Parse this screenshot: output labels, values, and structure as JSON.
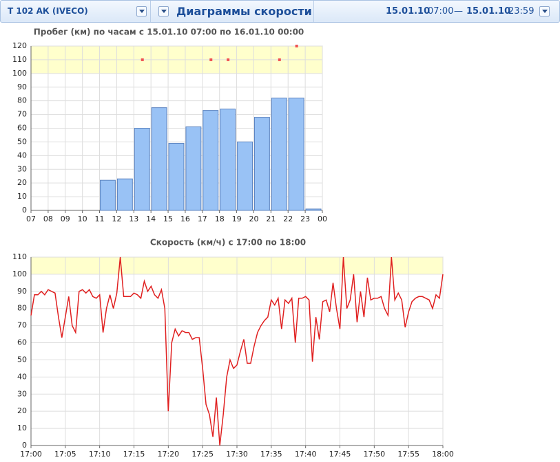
{
  "header": {
    "vehicle": "Т 102 АК (IVECO)",
    "title": "Диаграммы скорости",
    "from_date": "15.01.10",
    "from_time": "07:00",
    "dash": "—",
    "to_date": "15.01.10",
    "to_time": "23:59"
  },
  "chart_data": [
    {
      "type": "histogram",
      "title": "Пробег (км) по часам с 15.01.10 07:00 по 16.01.10 00:00",
      "color": "#99c2f5",
      "edge_color": "#5b83c0",
      "bins": [
        7,
        8,
        9,
        10,
        11,
        12,
        13,
        14,
        15,
        16,
        17,
        18,
        19,
        20,
        21,
        22,
        23,
        24
      ],
      "values": [
        0,
        0,
        0,
        0,
        22,
        23,
        60,
        75,
        49,
        61,
        73,
        74,
        50,
        68,
        82,
        82,
        1
      ],
      "xlim": [
        7,
        24
      ],
      "xticks": [
        {
          "value": 7,
          "label": "07"
        },
        {
          "value": 8,
          "label": "08"
        },
        {
          "value": 9,
          "label": "09"
        },
        {
          "value": 10,
          "label": "10"
        },
        11,
        12,
        13,
        14,
        15,
        16,
        17,
        18,
        19,
        20,
        21,
        22,
        23,
        {
          "value": 24,
          "label": "00"
        }
      ],
      "ylim": [
        0,
        120
      ],
      "yticks": [
        0,
        10,
        20,
        30,
        40,
        50,
        60,
        70,
        80,
        90,
        100,
        110,
        120
      ],
      "band": [
        100,
        120
      ],
      "band_color": "#ffffcc",
      "markers": {
        "color": "#f05050",
        "x": [
          13.5,
          17.5,
          18.5,
          21.5,
          22.5
        ],
        "y": [
          110,
          110,
          110,
          110,
          120
        ]
      },
      "grid": true
    },
    {
      "type": "line",
      "title": "Скорость (км/ч) с 17:00 по 18:00",
      "color": "#e02020",
      "x": [
        0,
        0.5,
        1,
        1.5,
        2,
        2.5,
        3,
        3.5,
        4,
        4.5,
        5,
        5.5,
        6,
        6.5,
        7,
        7.5,
        8,
        8.5,
        9,
        9.5,
        10,
        10.5,
        11,
        11.5,
        12,
        12.5,
        13,
        13.5,
        14,
        14.5,
        15,
        15.5,
        16,
        16.5,
        17,
        17.5,
        18,
        18.5,
        19,
        19.5,
        20,
        20.5,
        21,
        21.5,
        22,
        22.5,
        23,
        23.5,
        24,
        24.5,
        25,
        25.5,
        26,
        26.5,
        27,
        27.5,
        28,
        28.5,
        29,
        29.5,
        30,
        30.5,
        31,
        31.5,
        32,
        32.5,
        33,
        33.5,
        34,
        34.5,
        35,
        35.5,
        36,
        36.5,
        37,
        37.5,
        38,
        38.5,
        39,
        39.5,
        40,
        40.5,
        41,
        41.5,
        42,
        42.5,
        43,
        43.5,
        44,
        44.5,
        45,
        45.5,
        46,
        46.5,
        47,
        47.5,
        48,
        48.5,
        49,
        49.5,
        50,
        50.5,
        51,
        51.5,
        52,
        52.5,
        53,
        53.5,
        54,
        54.5,
        55,
        55.5,
        56,
        56.5,
        57,
        57.5,
        58,
        58.5,
        59,
        59.5,
        60
      ],
      "values": [
        76,
        88,
        88,
        90,
        88,
        91,
        90,
        89,
        75,
        63,
        75,
        87,
        70,
        66,
        90,
        91,
        89,
        91,
        87,
        86,
        88,
        66,
        80,
        88,
        80,
        89,
        110,
        87,
        87,
        87,
        89,
        88,
        86,
        96,
        90,
        93,
        88,
        86,
        91,
        80,
        20,
        60,
        68,
        64,
        67,
        66,
        66,
        62,
        63,
        63,
        45,
        24,
        18,
        5,
        28,
        0,
        18,
        40,
        50,
        45,
        47,
        55,
        62,
        48,
        48,
        58,
        66,
        70,
        73,
        75,
        85,
        82,
        86,
        68,
        85,
        83,
        86,
        60,
        86,
        86,
        87,
        85,
        49,
        75,
        62,
        84,
        85,
        78,
        95,
        80,
        68,
        110,
        80,
        85,
        100,
        72,
        90,
        75,
        98,
        85,
        86,
        86,
        87,
        80,
        76,
        110,
        85,
        89,
        85,
        69,
        78,
        84,
        86,
        87,
        87,
        86,
        85,
        80,
        88,
        86,
        100
      ],
      "xlim": [
        0,
        60
      ],
      "xticks": [
        {
          "value": 0,
          "label": "17:00"
        },
        {
          "value": 5,
          "label": "17:05"
        },
        {
          "value": 10,
          "label": "17:10"
        },
        {
          "value": 15,
          "label": "17:15"
        },
        {
          "value": 20,
          "label": "17:20"
        },
        {
          "value": 25,
          "label": "17:25"
        },
        {
          "value": 30,
          "label": "17:30"
        },
        {
          "value": 35,
          "label": "17:35"
        },
        {
          "value": 40,
          "label": "17:40"
        },
        {
          "value": 45,
          "label": "17:45"
        },
        {
          "value": 50,
          "label": "17:50"
        },
        {
          "value": 55,
          "label": "17:55"
        },
        {
          "value": 60,
          "label": "18:00"
        }
      ],
      "ylim": [
        0,
        110
      ],
      "yticks": [
        0,
        10,
        20,
        30,
        40,
        50,
        60,
        70,
        80,
        90,
        100,
        110
      ],
      "band": [
        100,
        110
      ],
      "band_color": "#ffffcc",
      "grid": true
    }
  ]
}
